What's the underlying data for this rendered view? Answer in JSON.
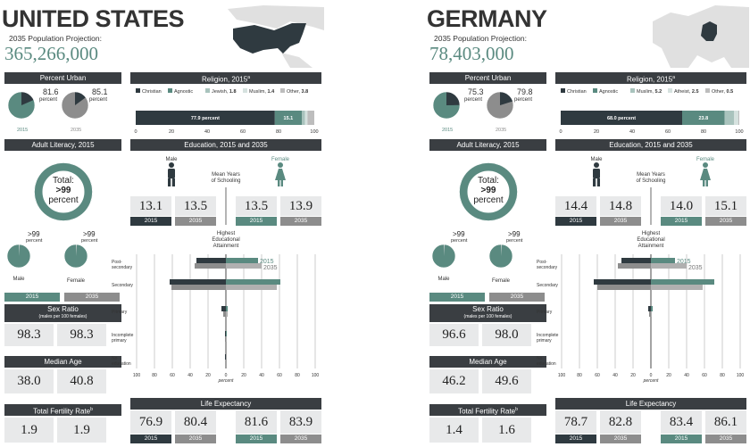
{
  "colors": {
    "dark": "#2f3a40",
    "teal": "#5a8a80",
    "gray": "#8d8d8d",
    "light": "#c4d3cf",
    "header": "#3a3e42",
    "box": "#e8e9ea"
  },
  "countries": [
    {
      "name": "UNITED STATES",
      "proj_label": "2035 Population Projection:",
      "proj_value": "365,266,000",
      "headers": {
        "urban": "Percent Urban",
        "religion": "Religion, 2015",
        "religion_sup": "a",
        "literacy": "Adult Literacy, 2015",
        "education": "Education, 2015 and 2035",
        "sexratio": "Sex Ratio",
        "sexratio_sub": "(males per 100 females)",
        "medianage": "Median Age",
        "fertility": "Total Fertility Rate",
        "fertility_sup": "b",
        "life": "Life Expectancy"
      },
      "urban": {
        "v2015": "81.6",
        "v2035": "85.1",
        "unit": "percent",
        "y2015": "2015",
        "y2035": "2035",
        "f2015": 0.816,
        "f2035": 0.851
      },
      "religion": {
        "legend": [
          {
            "label": "Christian",
            "value": ""
          },
          {
            "label": "Agnostic",
            "value": ""
          },
          {
            "label": "Jewish,",
            "value": "1.8"
          },
          {
            "label": "Muslim,",
            "value": "1.4"
          },
          {
            "label": "Other,",
            "value": "3.8"
          }
        ],
        "bar_label": "77.9 percent",
        "bar_label2": "15.1",
        "values": [
          77.9,
          15.1,
          1.8,
          1.4,
          3.8
        ],
        "ticks": [
          "0",
          "20",
          "40",
          "60",
          "80",
          "100"
        ]
      },
      "literacy": {
        "line1": "Total:",
        "line2": ">99",
        "line3": "percent",
        "f": 0.99,
        "male_val": ">99",
        "male_unit": "percent",
        "male_label": "Male",
        "female_val": ">99",
        "female_unit": "percent",
        "female_label": "Female",
        "y2015": "2015",
        "y2035": "2035"
      },
      "education": {
        "male": "Male",
        "female": "Female",
        "mean_years": "Mean Years of Schooling",
        "male2015": "13.1",
        "male2035": "13.5",
        "female2015": "13.5",
        "female2035": "13.9",
        "y2015": "2015",
        "y2035": "2035",
        "attain_title": "Highest Educational Attainment",
        "legend2015": "2015",
        "legend2035": "2035",
        "categories": [
          "Post-secondary",
          "Secondary",
          "Primary",
          "Incomplete primary",
          "No education"
        ],
        "male_2015": [
          33,
          63,
          5,
          1,
          1
        ],
        "male_2035": [
          35,
          61,
          3,
          1,
          0
        ],
        "female_2015": [
          36,
          61,
          2,
          1,
          0
        ],
        "female_2035": [
          40,
          57,
          2,
          1,
          0
        ],
        "axis_ticks": [
          "100",
          "80",
          "60",
          "40",
          "20",
          "0",
          "20",
          "40",
          "60",
          "80",
          "100"
        ],
        "axis_label": "percent"
      },
      "sexratio": {
        "v2015": "98.3",
        "v2035": "98.3"
      },
      "medianage": {
        "v2015": "38.0",
        "v2035": "40.8"
      },
      "fertility": {
        "v2015": "1.9",
        "v2035": "1.9"
      },
      "life": {
        "m2015": "76.9",
        "m2035": "80.4",
        "f2015": "81.6",
        "f2035": "83.9",
        "y2015": "2015",
        "y2035": "2035"
      }
    },
    {
      "name": "GERMANY",
      "proj_label": "2035 Population Projection:",
      "proj_value": "78,403,000",
      "headers": {
        "urban": "Percent Urban",
        "religion": "Religion, 2015",
        "religion_sup": "a",
        "literacy": "Adult Literacy, 2015",
        "education": "Education, 2015 and 2035",
        "sexratio": "Sex Ratio",
        "sexratio_sub": "(males per 100 females)",
        "medianage": "Median Age",
        "fertility": "Total Fertility Rate",
        "fertility_sup": "b",
        "life": "Life Expectancy"
      },
      "urban": {
        "v2015": "75.3",
        "v2035": "79.8",
        "unit": "percent",
        "y2015": "2015",
        "y2035": "2035",
        "f2015": 0.753,
        "f2035": 0.798
      },
      "religion": {
        "legend": [
          {
            "label": "Christian",
            "value": ""
          },
          {
            "label": "Agnostic",
            "value": ""
          },
          {
            "label": "Muslim,",
            "value": "5.2"
          },
          {
            "label": "Atheist,",
            "value": "2.5"
          },
          {
            "label": "Other,",
            "value": "0.5"
          }
        ],
        "bar_label": "68.0 percent",
        "bar_label2": "23.8",
        "values": [
          68.0,
          23.8,
          5.2,
          2.5,
          0.5
        ],
        "ticks": [
          "0",
          "20",
          "40",
          "60",
          "80",
          "100"
        ]
      },
      "literacy": {
        "line1": "Total:",
        "line2": ">99",
        "line3": "percent",
        "f": 0.99,
        "male_val": ">99",
        "male_unit": "percent",
        "male_label": "Male",
        "female_val": ">99",
        "female_unit": "percent",
        "female_label": "Female",
        "y2015": "2015",
        "y2035": "2035"
      },
      "education": {
        "male": "Male",
        "female": "Female",
        "mean_years": "Mean Years of Schooling",
        "male2015": "14.4",
        "male2035": "14.8",
        "female2015": "14.0",
        "female2035": "15.1",
        "y2015": "2015",
        "y2035": "2035",
        "attain_title": "Highest Educational Attainment",
        "legend2015": "2015",
        "legend2035": "2035",
        "categories": [
          "Post-secondary",
          "Secondary",
          "Primary",
          "Incomplete primary",
          "No education"
        ],
        "male_2015": [
          33,
          64,
          3,
          0,
          0
        ],
        "male_2035": [
          37,
          60,
          2,
          0,
          0
        ],
        "female_2015": [
          27,
          71,
          2,
          0,
          0
        ],
        "female_2035": [
          40,
          58,
          1,
          0,
          0
        ],
        "axis_ticks": [
          "100",
          "80",
          "60",
          "40",
          "20",
          "0",
          "20",
          "40",
          "60",
          "80",
          "100"
        ],
        "axis_label": "percent"
      },
      "sexratio": {
        "v2015": "96.6",
        "v2035": "98.0"
      },
      "medianage": {
        "v2015": "46.2",
        "v2035": "49.6"
      },
      "fertility": {
        "v2015": "1.4",
        "v2035": "1.6"
      },
      "life": {
        "m2015": "78.7",
        "m2035": "82.8",
        "f2015": "83.4",
        "f2035": "86.1",
        "y2015": "2015",
        "y2035": "2035"
      }
    }
  ]
}
